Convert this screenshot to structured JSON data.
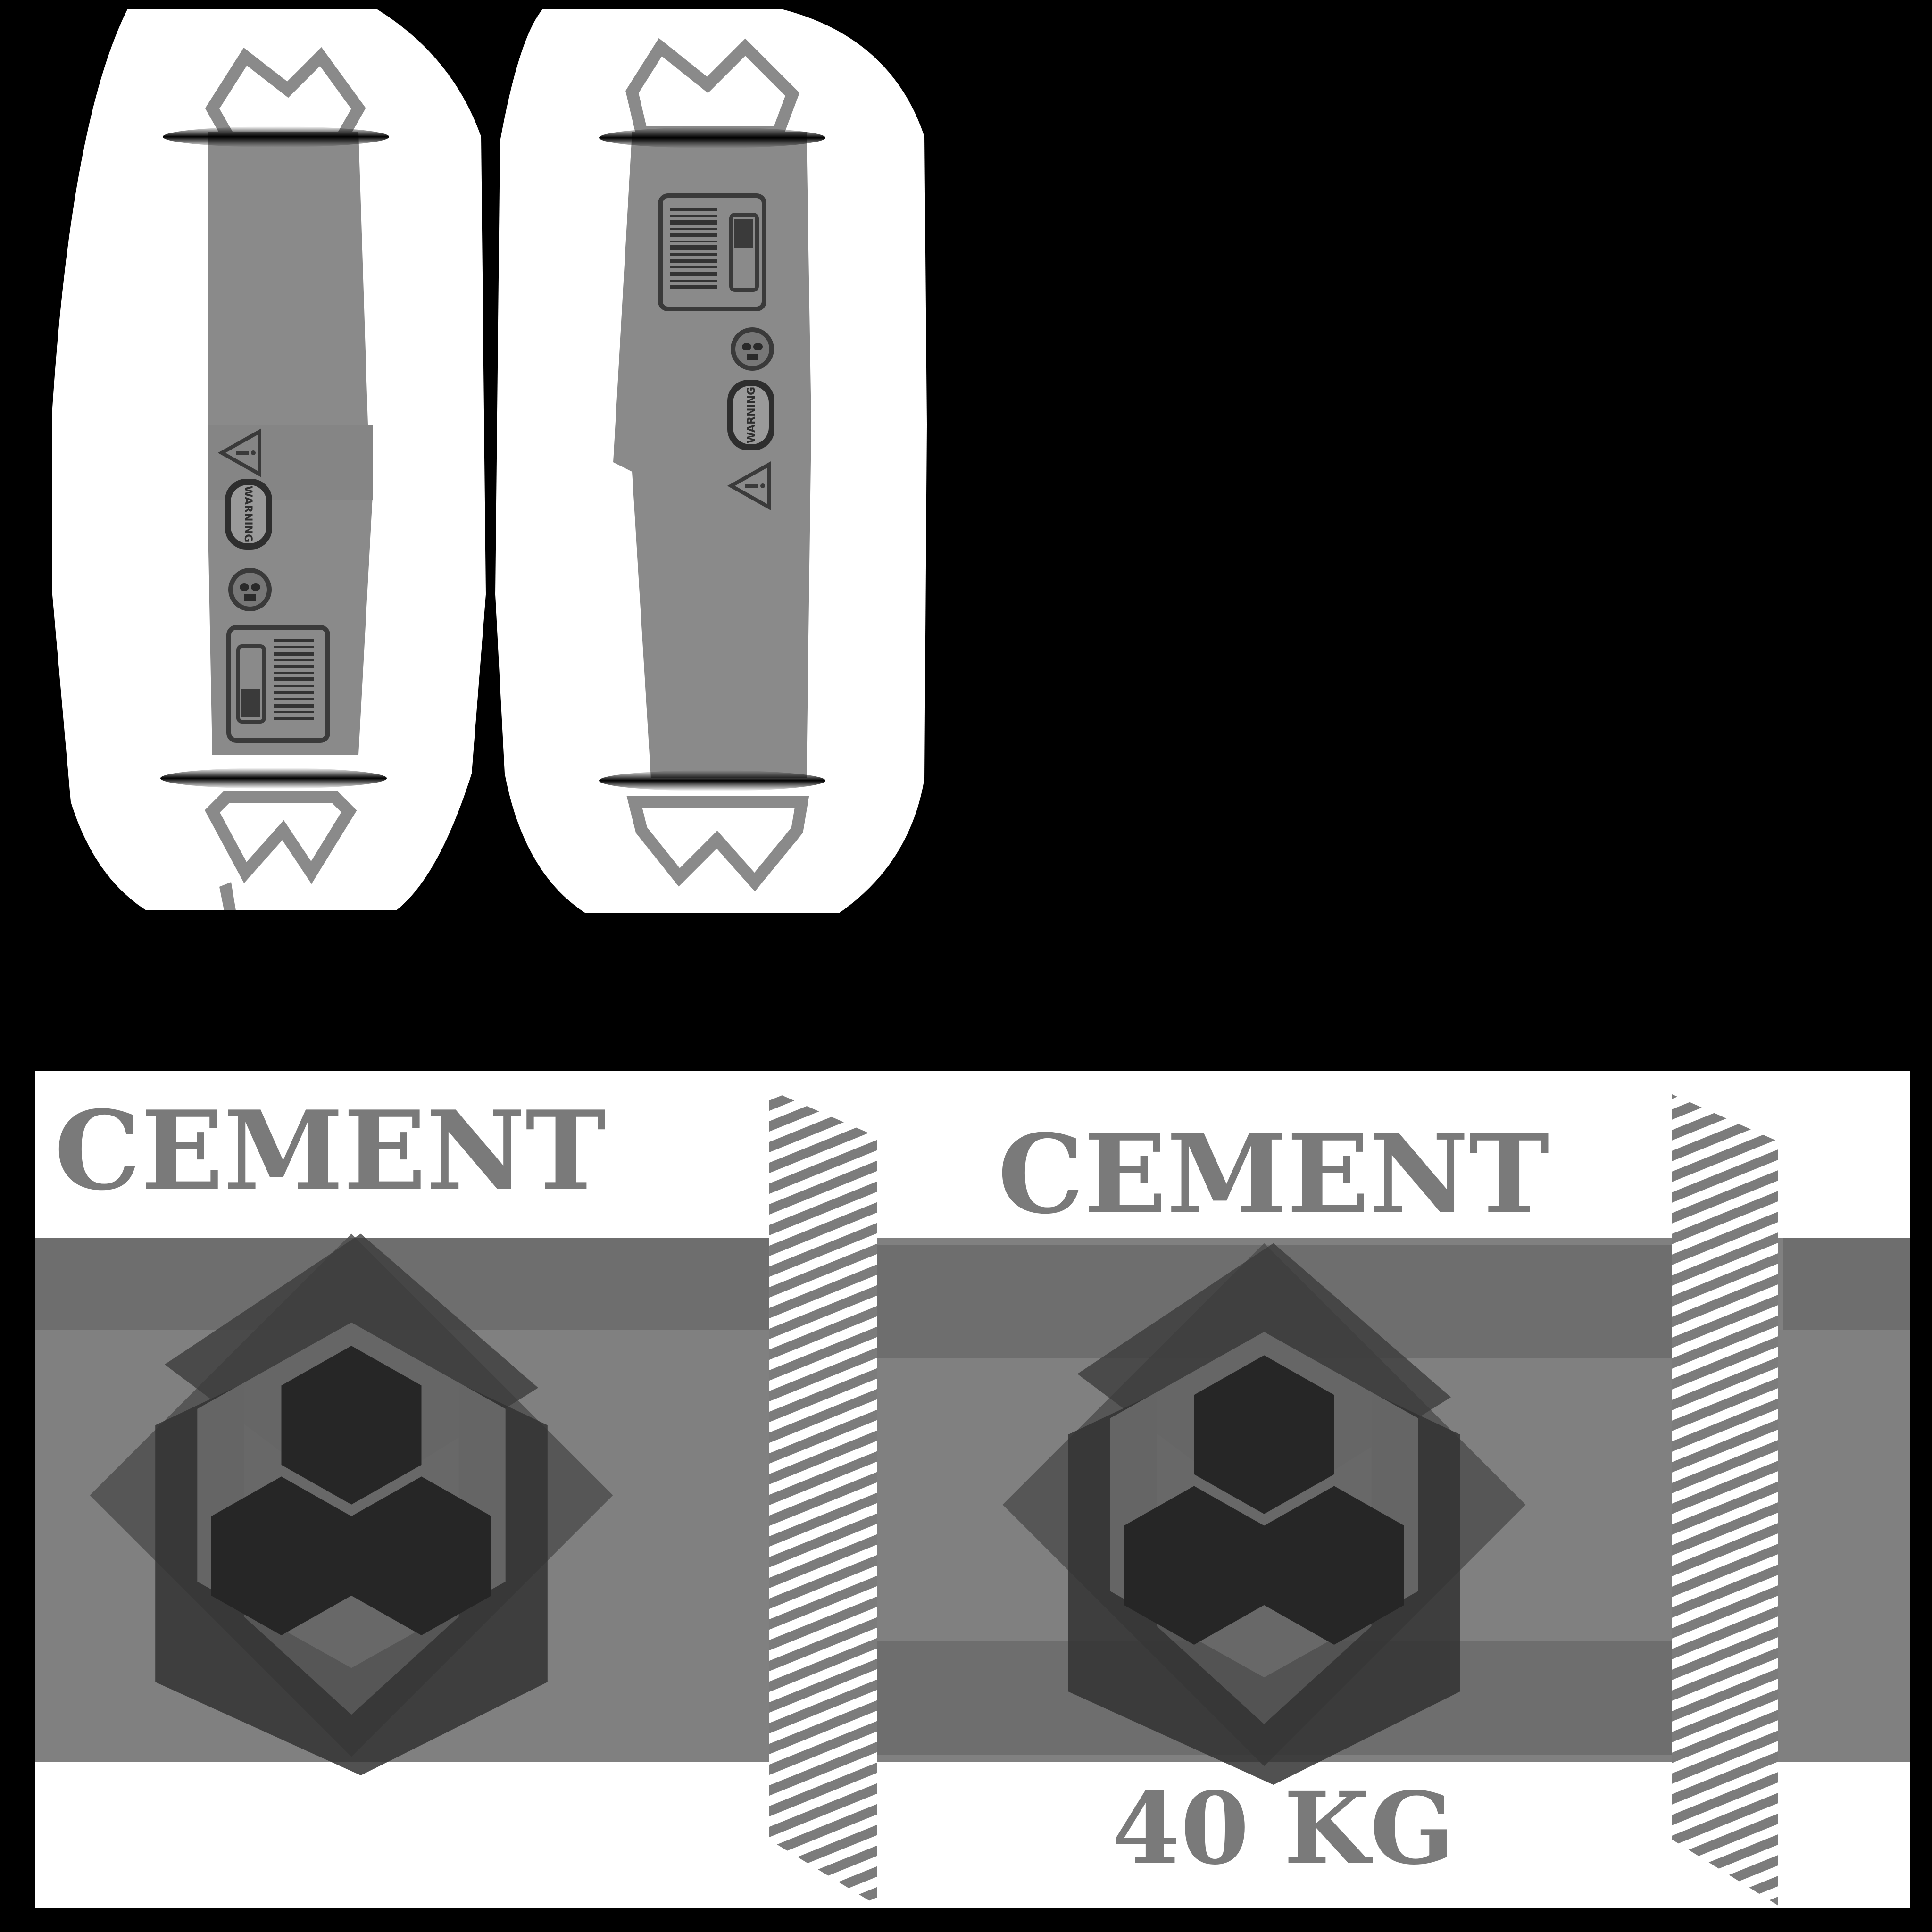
{
  "colors": {
    "background": "#000000",
    "paper": "#ffffff",
    "bag_gray": "#808080",
    "mid_gray": "#6e6e6e",
    "dark_gray": "#4a4a4a",
    "hex_dark": "#262626",
    "text_gray": "#7a7a7a"
  },
  "side_panels": {
    "left": {
      "warning_label": "WARNING",
      "icons": [
        "hazard-triangle-icon",
        "warning-plate",
        "gas-mask-icon",
        "barcode-label"
      ]
    },
    "right": {
      "warning_label": "WARNING",
      "icons": [
        "barcode-label",
        "gas-mask-icon",
        "warning-plate",
        "hazard-triangle-icon"
      ]
    }
  },
  "front_panel": {
    "title": "CEMENT",
    "logo": "hexagon-cluster-logo"
  },
  "back_panel": {
    "title": "CEMENT",
    "weight": "40 KG",
    "logo": "hexagon-cluster-logo"
  }
}
